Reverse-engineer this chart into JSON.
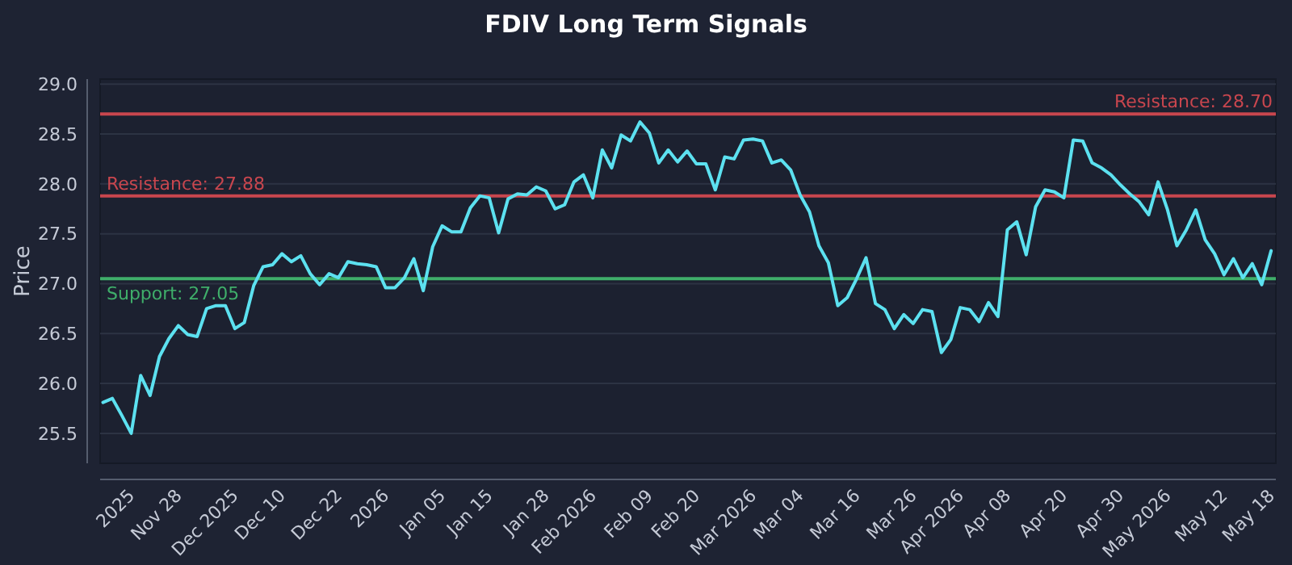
{
  "chart_data": {
    "type": "line",
    "title": "FDIV Long Term Signals",
    "ylabel": "Price",
    "categories": [
      null,
      null,
      null,
      "2025",
      null,
      null,
      null,
      null,
      "Nov 28",
      null,
      null,
      null,
      null,
      null,
      "Dec 2025",
      null,
      null,
      null,
      null,
      "Dec 10",
      null,
      null,
      null,
      null,
      null,
      "Dec 22",
      null,
      null,
      null,
      null,
      "2026",
      null,
      null,
      null,
      null,
      null,
      "Jan 05",
      null,
      null,
      null,
      null,
      "Jan 15",
      null,
      null,
      null,
      null,
      null,
      "Jan 28",
      null,
      null,
      null,
      null,
      "Feb 2026",
      null,
      null,
      null,
      null,
      null,
      "Feb 09",
      null,
      null,
      null,
      null,
      "Feb 20",
      null,
      null,
      null,
      null,
      null,
      "Mar 2026",
      null,
      null,
      null,
      null,
      "Mar 04",
      null,
      null,
      null,
      null,
      null,
      "Mar 16",
      null,
      null,
      null,
      null,
      null,
      "Mar 26",
      null,
      null,
      null,
      null,
      "Apr 2026",
      null,
      null,
      null,
      null,
      "Apr 08",
      null,
      null,
      null,
      null,
      null,
      "Apr 20",
      null,
      null,
      null,
      null,
      null,
      "Apr 30",
      null,
      null,
      null,
      null,
      "May 2026",
      null,
      null,
      null,
      null,
      null,
      "May 12",
      null,
      null,
      null,
      null,
      "May 18"
    ],
    "series": [
      {
        "color": "#5ce1f0",
        "values": [
          25.81,
          25.85,
          25.68,
          25.5,
          26.08,
          25.88,
          26.27,
          26.45,
          26.58,
          26.49,
          26.47,
          26.75,
          26.78,
          26.78,
          26.55,
          26.61,
          26.98,
          27.17,
          27.19,
          27.3,
          27.22,
          27.28,
          27.1,
          26.99,
          27.1,
          27.06,
          27.22,
          27.2,
          27.19,
          27.17,
          26.96,
          26.96,
          27.06,
          27.25,
          26.93,
          27.37,
          27.58,
          27.52,
          27.52,
          27.76,
          27.88,
          27.86,
          27.51,
          27.85,
          27.9,
          27.89,
          27.97,
          27.93,
          27.75,
          27.79,
          28.02,
          28.09,
          27.86,
          28.34,
          28.16,
          28.49,
          28.43,
          28.62,
          28.51,
          28.21,
          28.34,
          28.22,
          28.33,
          28.2,
          28.2,
          27.94,
          28.27,
          28.25,
          28.44,
          28.45,
          28.43,
          28.21,
          28.24,
          28.14,
          27.89,
          27.72,
          27.38,
          27.21,
          26.78,
          26.86,
          27.05,
          27.26,
          26.8,
          26.74,
          26.55,
          26.69,
          26.6,
          26.74,
          26.72,
          26.31,
          26.44,
          26.76,
          26.74,
          26.62,
          26.81,
          26.67,
          27.54,
          27.62,
          27.29,
          27.77,
          27.94,
          27.92,
          27.86,
          28.44,
          28.43,
          28.21,
          28.16,
          28.09,
          27.99,
          27.9,
          27.82,
          27.69,
          28.02,
          27.74,
          27.38,
          27.54,
          27.74,
          27.44,
          27.3,
          27.09,
          27.25,
          27.06,
          27.2,
          26.99,
          27.33
        ]
      }
    ],
    "ylim": [
      25.2,
      29.05
    ],
    "yticks": [
      {
        "value": 25.5,
        "label": "25.5"
      },
      {
        "value": 26,
        "label": "26.0"
      },
      {
        "value": 26.5,
        "label": "26.5"
      },
      {
        "value": 27,
        "label": "27.0"
      },
      {
        "value": 27.5,
        "label": "27.5"
      },
      {
        "value": 28,
        "label": "28.0"
      },
      {
        "value": 28.5,
        "label": "28.5"
      },
      {
        "value": 29,
        "label": "29.0"
      }
    ],
    "grid": "y",
    "marker": "none",
    "line_style": "solid",
    "ref_lines": [
      {
        "axis": "y",
        "value": 28.7,
        "label": "Resistance: 28.70",
        "color": "#c8464e"
      },
      {
        "axis": "y",
        "value": 27.88,
        "label": "Resistance: 27.88",
        "color": "#c8464e"
      },
      {
        "axis": "y",
        "value": 27.05,
        "label": "Support: 27.05",
        "color": "#3fae6a"
      }
    ]
  }
}
